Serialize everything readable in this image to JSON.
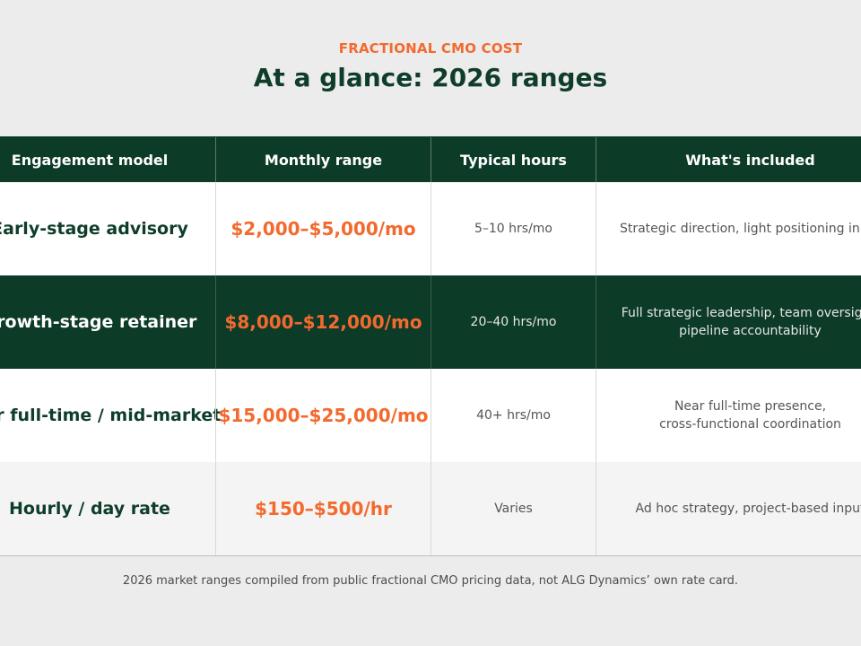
{
  "header": {
    "eyebrow": "FRACTIONAL CMO COST",
    "title": "At a glance: 2026 ranges"
  },
  "table": {
    "columns": [
      "Engagement model",
      "Monthly range",
      "Typical hours",
      "What's included"
    ],
    "rows": [
      {
        "model": "Early-stage advisory",
        "price": "$2,000–$5,000/mo",
        "hours": "5–10 hrs/mo",
        "included_lines": [
          "Strategic direction, light positioning input"
        ]
      },
      {
        "model": "Growth-stage retainer",
        "price": "$8,000–$12,000/mo",
        "hours": "20–40 hrs/mo",
        "included_lines": [
          "Full strategic leadership, team oversight,",
          "pipeline accountability"
        ]
      },
      {
        "model": "Near full-time / mid-market",
        "price": "$15,000–$25,000/mo",
        "hours": "40+ hrs/mo",
        "included_lines": [
          "Near full-time presence,",
          "cross-functional coordination"
        ]
      },
      {
        "model": "Hourly / day rate",
        "price": "$150–$500/hr",
        "hours": "Varies",
        "included_lines": [
          "Ad hoc strategy, project-based input"
        ]
      }
    ]
  },
  "footnote": "2026 market ranges compiled from public fractional CMO pricing data, not ALG Dynamics’ own rate card.",
  "colors": {
    "brand_green": "#0c3b28",
    "accent_orange": "#f26a2e",
    "background": "#ececec"
  }
}
